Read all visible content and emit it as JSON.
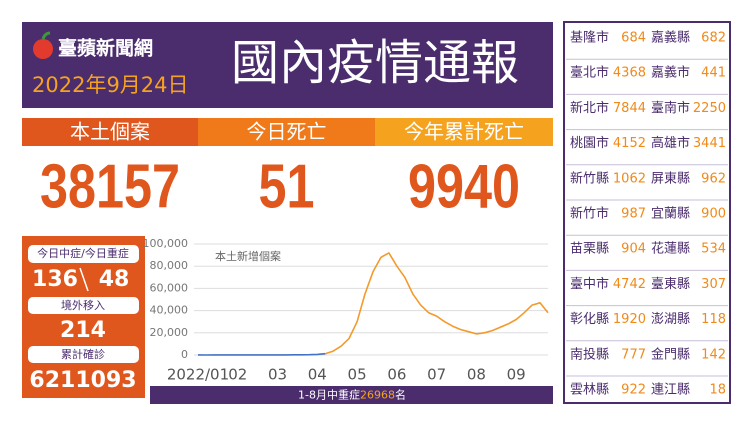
{
  "header": {
    "brand": "臺蘋新聞網",
    "date": "2022年9月24日",
    "title": "國內疫情通報"
  },
  "stats": [
    {
      "label": "本土個案",
      "value": 38157,
      "color": "#e0571d"
    },
    {
      "label": "今日死亡",
      "value": 51,
      "color": "#f07a1a"
    },
    {
      "label": "今年累計死亡",
      "value": 9940,
      "color": "#f5a31f"
    }
  ],
  "left_box": {
    "severe_label": "今日中症/今日重症",
    "moderate_today": 136,
    "severe_today": 48,
    "imported_label": "境外移入",
    "imported": 214,
    "total_label": "累計確診",
    "total": 6211093
  },
  "chart_data": {
    "type": "line",
    "annotation": "本土新增個案",
    "x": [
      1.0,
      1.2,
      1.4,
      1.6,
      1.8,
      2.0,
      2.2,
      2.4,
      2.6,
      2.8,
      3.0,
      3.2,
      3.4,
      3.6,
      3.8,
      4.0,
      4.2,
      4.4,
      4.6,
      4.8,
      5.0,
      5.2,
      5.4,
      5.6,
      5.8,
      6.0,
      6.2,
      6.4,
      6.6,
      6.8,
      7.0,
      7.2,
      7.4,
      7.6,
      7.8,
      8.0,
      8.2,
      8.4,
      8.6,
      8.8,
      9.0,
      9.2,
      9.4,
      9.6,
      9.8
    ],
    "series": [
      {
        "color": "#4472c4",
        "values": [
          50,
          40,
          60,
          70,
          80,
          60,
          50,
          60,
          70,
          80,
          100,
          100,
          150,
          200,
          300,
          500,
          1200,
          null,
          null,
          null,
          null,
          null,
          null,
          null,
          null,
          null,
          null,
          null,
          null,
          null,
          null,
          null,
          null,
          null,
          null,
          null,
          null,
          null,
          null,
          null,
          null,
          null,
          null,
          null,
          null
        ]
      },
      {
        "color": "#f39a2b",
        "values": [
          null,
          null,
          null,
          null,
          null,
          null,
          null,
          null,
          null,
          null,
          null,
          null,
          null,
          null,
          null,
          null,
          1200,
          3500,
          8000,
          15000,
          30000,
          55000,
          75000,
          88000,
          92000,
          80000,
          70000,
          55000,
          45000,
          38000,
          35000,
          30000,
          26000,
          23000,
          21000,
          19000,
          20000,
          22000,
          25000,
          28000,
          32000,
          38000,
          45000,
          47000,
          38000
        ]
      }
    ],
    "xlim": [
      1,
      9.8
    ],
    "xticks": [
      {
        "value": 1,
        "label": "2022/01"
      },
      {
        "value": 2,
        "label": "02"
      },
      {
        "value": 3,
        "label": "03"
      },
      {
        "value": 4,
        "label": "04"
      },
      {
        "value": 5,
        "label": "05"
      },
      {
        "value": 6,
        "label": "06"
      },
      {
        "value": 7,
        "label": "07"
      },
      {
        "value": 8,
        "label": "08"
      },
      {
        "value": 9,
        "label": "09"
      }
    ],
    "ylim": [
      0,
      100000
    ],
    "yticks": [
      0,
      {
        "value": 20000,
        "label": "20,000"
      },
      {
        "value": 40000,
        "label": "40,000"
      },
      {
        "value": 60000,
        "label": "60,000"
      },
      {
        "value": 80000,
        "label": "80,000"
      },
      {
        "value": 100000,
        "label": "100,000"
      }
    ],
    "grid": true
  },
  "footer_note": {
    "prefix": "1-8月中重症",
    "value": 26968,
    "suffix": "名"
  },
  "counties": [
    {
      "name": "基隆市",
      "cases": 684
    },
    {
      "name": "嘉義縣",
      "cases": 682
    },
    {
      "name": "臺北市",
      "cases": 4368
    },
    {
      "name": "嘉義市",
      "cases": 441
    },
    {
      "name": "新北市",
      "cases": 7844
    },
    {
      "name": "臺南市",
      "cases": 2250
    },
    {
      "name": "桃園市",
      "cases": 4152
    },
    {
      "name": "高雄市",
      "cases": 3441
    },
    {
      "name": "新竹縣",
      "cases": 1062
    },
    {
      "name": "屏東縣",
      "cases": 962
    },
    {
      "name": "新竹市",
      "cases": 987
    },
    {
      "name": "宜蘭縣",
      "cases": 900
    },
    {
      "name": "苗栗縣",
      "cases": 904
    },
    {
      "name": "花蓮縣",
      "cases": 534
    },
    {
      "name": "臺中市",
      "cases": 4742
    },
    {
      "name": "臺東縣",
      "cases": 307
    },
    {
      "name": "彰化縣",
      "cases": 1920
    },
    {
      "name": "澎湖縣",
      "cases": 118
    },
    {
      "name": "南投縣",
      "cases": 777
    },
    {
      "name": "金門縣",
      "cases": 142
    },
    {
      "name": "雲林縣",
      "cases": 922
    },
    {
      "name": "連江縣",
      "cases": 18
    }
  ]
}
